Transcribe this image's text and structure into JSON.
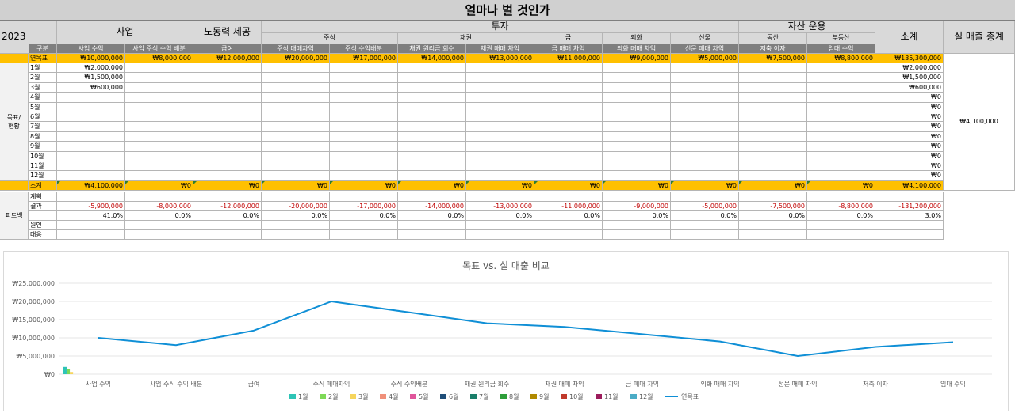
{
  "sheet": {
    "title": "얼마나 벌 것인가",
    "year": "2023",
    "header": {
      "groups": {
        "business": "사업",
        "labor": "노동력 제공",
        "invest": "투자",
        "asset": "자산 운용",
        "subtotal": "소계",
        "actual_total": "실 매출 총계"
      },
      "subgroups": {
        "stock": "주식",
        "bond": "채권",
        "gold": "금",
        "fx": "외화",
        "futures": "선물",
        "movable": "동산",
        "realestate": "부동산"
      },
      "gubun": "구분",
      "columns": [
        "사업 수익",
        "사업 주식 수익 배분",
        "급여",
        "주식 매매차익",
        "주식 수익배분",
        "채권 원리금 회수",
        "채권 매매 차익",
        "금 매매 차익",
        "외화 매매 차익",
        "선문 매매 차익",
        "저축 이자",
        "임대 수익"
      ]
    },
    "side_label_goal": "목표/\n현황",
    "side_label_feedback": "피드백",
    "annual_goal_label": "연목표",
    "annual_goal": [
      "₩10,000,000",
      "₩8,000,000",
      "₩12,000,000",
      "₩20,000,000",
      "₩17,000,000",
      "₩14,000,000",
      "₩13,000,000",
      "₩11,000,000",
      "₩9,000,000",
      "₩5,000,000",
      "₩7,500,000",
      "₩8,800,000"
    ],
    "annual_goal_subtotal": "₩135,300,000",
    "months": [
      {
        "label": "1월",
        "business": "₩2,000,000",
        "subtotal": "₩2,000,000"
      },
      {
        "label": "2월",
        "business": "₩1,500,000",
        "subtotal": "₩1,500,000"
      },
      {
        "label": "3월",
        "business": "₩600,000",
        "subtotal": "₩600,000"
      },
      {
        "label": "4월",
        "business": "",
        "subtotal": "₩0"
      },
      {
        "label": "5월",
        "business": "",
        "subtotal": "₩0"
      },
      {
        "label": "6월",
        "business": "",
        "subtotal": "₩0"
      },
      {
        "label": "7월",
        "business": "",
        "subtotal": "₩0"
      },
      {
        "label": "8월",
        "business": "",
        "subtotal": "₩0"
      },
      {
        "label": "9월",
        "business": "",
        "subtotal": "₩0"
      },
      {
        "label": "10월",
        "business": "",
        "subtotal": "₩0"
      },
      {
        "label": "11월",
        "business": "",
        "subtotal": "₩0"
      },
      {
        "label": "12월",
        "business": "",
        "subtotal": "₩0"
      }
    ],
    "actual_total_value": "₩4,100,000",
    "sum_label": "소계",
    "sum_row": [
      "₩4,100,000",
      "₩0",
      "₩0",
      "₩0",
      "₩0",
      "₩0",
      "₩0",
      "₩0",
      "₩0",
      "₩0",
      "₩0",
      "₩0"
    ],
    "sum_row_subtotal": "₩4,100,000",
    "feedback": {
      "plan_label": "계획",
      "result_label": "결과",
      "cause_label": "원인",
      "response_label": "대응",
      "diff": [
        "-5,900,000",
        "-8,000,000",
        "-12,000,000",
        "-20,000,000",
        "-17,000,000",
        "-14,000,000",
        "-13,000,000",
        "-11,000,000",
        "-9,000,000",
        "-5,000,000",
        "-7,500,000",
        "-8,800,000"
      ],
      "diff_subtotal": "-131,200,000",
      "pct": [
        "41.0%",
        "0.0%",
        "0.0%",
        "0.0%",
        "0.0%",
        "0.0%",
        "0.0%",
        "0.0%",
        "0.0%",
        "0.0%",
        "0.0%",
        "0.0%"
      ],
      "pct_subtotal": "3.0%"
    }
  },
  "chart_data": {
    "type": "bar",
    "title": "목표 vs. 실 매출 비교",
    "categories": [
      "사업 수익",
      "사업 주식 수익 배분",
      "급여",
      "주식 매매차익",
      "주식 수익배분",
      "채권 원리금 회수",
      "채권 매매 차익",
      "금 매매 차익",
      "외화 매매 차익",
      "선문 매매 차익",
      "저축 이자",
      "임대 수익"
    ],
    "ylim": [
      0,
      25000000
    ],
    "yticks": [
      "₩0",
      "₩5,000,000",
      "₩10,000,000",
      "₩15,000,000",
      "₩20,000,000",
      "₩25,000,000"
    ],
    "series": [
      {
        "name": "1월",
        "color": "#2ec4b6",
        "values": [
          2000000,
          0,
          0,
          0,
          0,
          0,
          0,
          0,
          0,
          0,
          0,
          0
        ]
      },
      {
        "name": "2월",
        "color": "#7ed957",
        "values": [
          1500000,
          0,
          0,
          0,
          0,
          0,
          0,
          0,
          0,
          0,
          0,
          0
        ]
      },
      {
        "name": "3월",
        "color": "#f6d55c",
        "values": [
          600000,
          0,
          0,
          0,
          0,
          0,
          0,
          0,
          0,
          0,
          0,
          0
        ]
      },
      {
        "name": "4월",
        "color": "#f0907a",
        "values": [
          0,
          0,
          0,
          0,
          0,
          0,
          0,
          0,
          0,
          0,
          0,
          0
        ]
      },
      {
        "name": "5월",
        "color": "#e0559b",
        "values": [
          0,
          0,
          0,
          0,
          0,
          0,
          0,
          0,
          0,
          0,
          0,
          0
        ]
      },
      {
        "name": "6월",
        "color": "#1f4e79",
        "values": [
          0,
          0,
          0,
          0,
          0,
          0,
          0,
          0,
          0,
          0,
          0,
          0
        ]
      },
      {
        "name": "7월",
        "color": "#1a7f6a",
        "values": [
          0,
          0,
          0,
          0,
          0,
          0,
          0,
          0,
          0,
          0,
          0,
          0
        ]
      },
      {
        "name": "8월",
        "color": "#2e9e3a",
        "values": [
          0,
          0,
          0,
          0,
          0,
          0,
          0,
          0,
          0,
          0,
          0,
          0
        ]
      },
      {
        "name": "9월",
        "color": "#b08a00",
        "values": [
          0,
          0,
          0,
          0,
          0,
          0,
          0,
          0,
          0,
          0,
          0,
          0
        ]
      },
      {
        "name": "10월",
        "color": "#c0392b",
        "values": [
          0,
          0,
          0,
          0,
          0,
          0,
          0,
          0,
          0,
          0,
          0,
          0
        ]
      },
      {
        "name": "11월",
        "color": "#9c1c5c",
        "values": [
          0,
          0,
          0,
          0,
          0,
          0,
          0,
          0,
          0,
          0,
          0,
          0
        ]
      },
      {
        "name": "12월",
        "color": "#4bacc6",
        "values": [
          0,
          0,
          0,
          0,
          0,
          0,
          0,
          0,
          0,
          0,
          0,
          0
        ]
      }
    ],
    "line_series": {
      "name": "연목표",
      "color": "#0f8fd6",
      "values": [
        10000000,
        8000000,
        12000000,
        20000000,
        17000000,
        14000000,
        13000000,
        11000000,
        9000000,
        5000000,
        7500000,
        8800000
      ]
    },
    "legend": "bottom",
    "grid": true
  }
}
